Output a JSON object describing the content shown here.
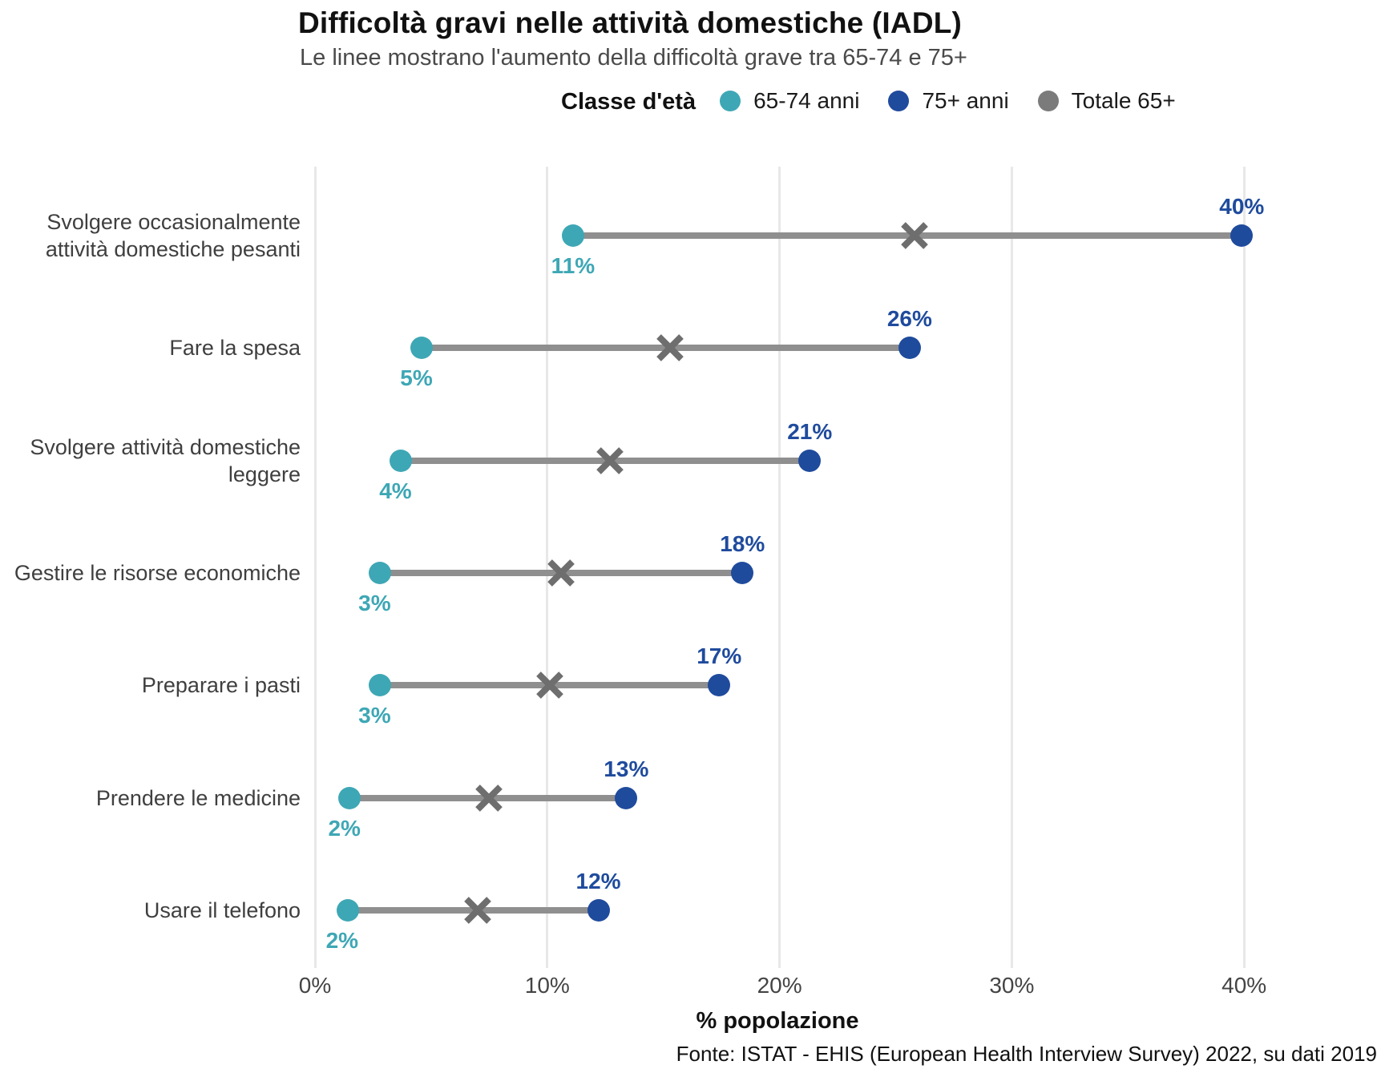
{
  "chart_data": {
    "type": "dumbbell",
    "title": "Difficoltà gravi nelle attività domestiche (IADL)",
    "subtitle": "Le linee mostrano l'aumento della difficoltà grave tra 65-74 e 75+",
    "xlabel": "% popolazione",
    "xlim": [
      0,
      44
    ],
    "grid": "vertical-major-only",
    "legend": {
      "title": "Classe d'età",
      "position": "top-center",
      "items": [
        {
          "label": "65-74 anni",
          "color": "#3ea7b5",
          "marker": "circle"
        },
        {
          "label": "75+ anni",
          "color": "#1f4b9d",
          "marker": "circle"
        },
        {
          "label": "Totale 65+",
          "color": "#7b7b7b",
          "marker": "circle"
        }
      ]
    },
    "x_ticks": [
      {
        "value": 0,
        "label": "0%"
      },
      {
        "value": 10,
        "label": "10%"
      },
      {
        "value": 20,
        "label": "20%"
      },
      {
        "value": 30,
        "label": "30%"
      },
      {
        "value": 40,
        "label": "40%"
      }
    ],
    "rows": [
      {
        "category_lines": [
          "Svolgere occasionalmente",
          "attività domestiche pesanti"
        ],
        "v_65_74": 11.1,
        "v_75plus": 39.9,
        "v_totale": 25.8,
        "label_65_74": "11%",
        "label_75plus": "40%"
      },
      {
        "category_lines": [
          "Fare la spesa"
        ],
        "v_65_74": 4.6,
        "v_75plus": 25.6,
        "v_totale": 15.3,
        "label_65_74": "5%",
        "label_75plus": "26%"
      },
      {
        "category_lines": [
          "Svolgere attività domestiche",
          "leggere"
        ],
        "v_65_74": 3.7,
        "v_75plus": 21.3,
        "v_totale": 12.7,
        "label_65_74": "4%",
        "label_75plus": "21%"
      },
      {
        "category_lines": [
          "Gestire le risorse economiche"
        ],
        "v_65_74": 2.8,
        "v_75plus": 18.4,
        "v_totale": 10.6,
        "label_65_74": "3%",
        "label_75plus": "18%"
      },
      {
        "category_lines": [
          "Preparare i pasti"
        ],
        "v_65_74": 2.8,
        "v_75plus": 17.4,
        "v_totale": 10.1,
        "label_65_74": "3%",
        "label_75plus": "17%"
      },
      {
        "category_lines": [
          "Prendere le medicine"
        ],
        "v_65_74": 1.5,
        "v_75plus": 13.4,
        "v_totale": 7.5,
        "label_65_74": "2%",
        "label_75plus": "13%"
      },
      {
        "category_lines": [
          "Usare il telefono"
        ],
        "v_65_74": 1.4,
        "v_75plus": 12.2,
        "v_totale": 7.0,
        "label_65_74": "2%",
        "label_75plus": "12%"
      }
    ],
    "colors": {
      "group_65_74": "#3ea7b5",
      "group_75plus": "#1f4b9d",
      "group_totale": "#6e6e6e",
      "connector": "#8f8f8f",
      "grid": "#e8e8e8"
    },
    "source": "Fonte: ISTAT - EHIS (European Health Interview Survey) 2022, su dati 2019"
  }
}
